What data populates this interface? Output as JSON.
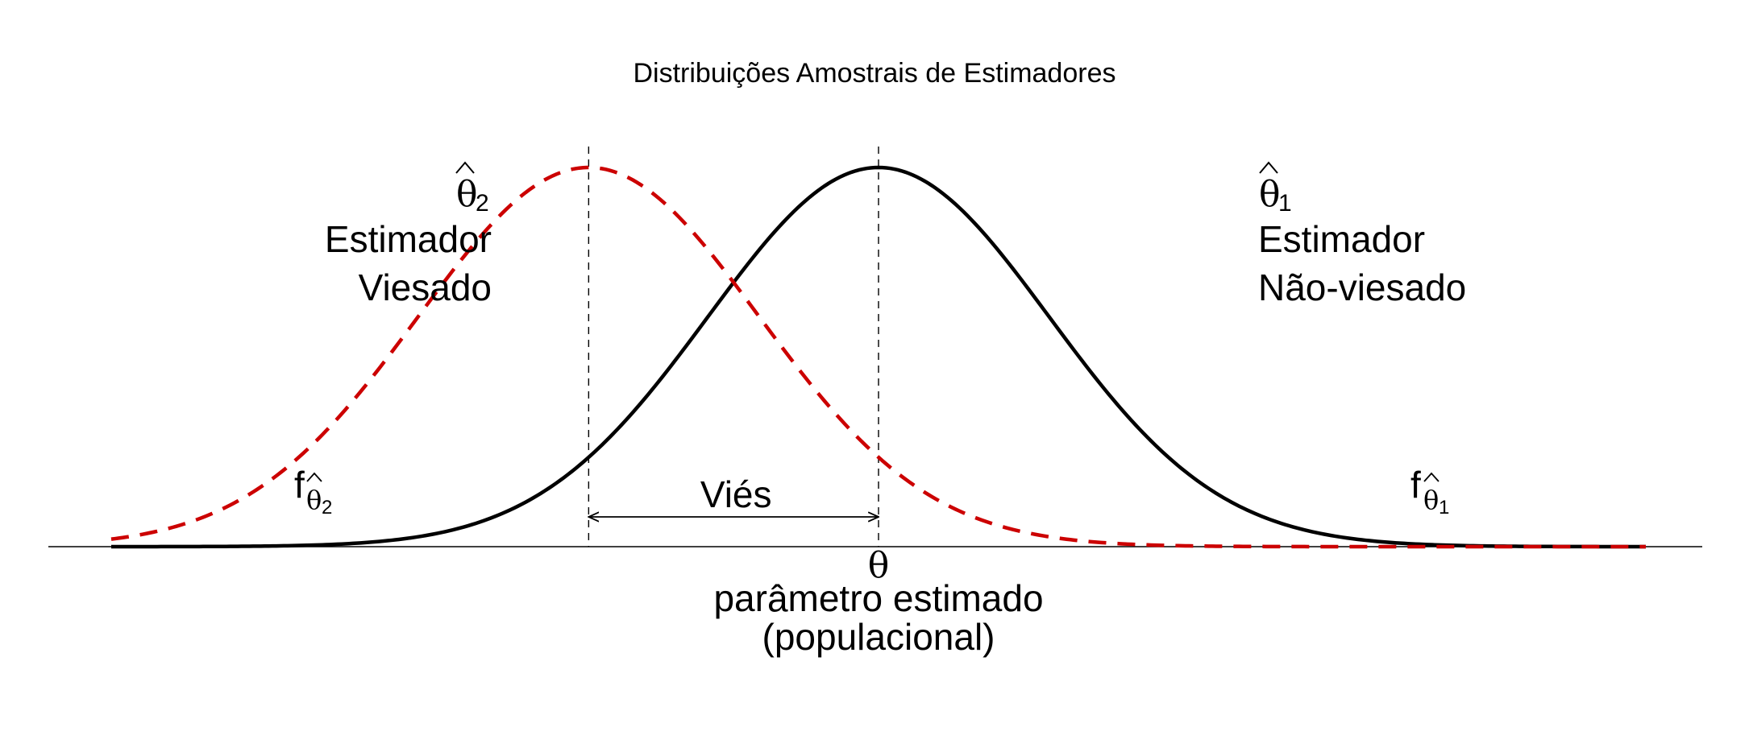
{
  "chart_data": {
    "type": "line",
    "title": "Distribuições Amostrais de Estimadores",
    "xlim": [
      -4.5,
      4.5
    ],
    "ylim": [
      0,
      1
    ],
    "theta": 0,
    "series": [
      {
        "role": "unbiased",
        "color": "#000000",
        "dash": "solid",
        "mean": 0,
        "sd": 1,
        "peak": 1,
        "estimator_symbol": "θ",
        "estimator_subscript": "1",
        "caption_lines": [
          "Estimador",
          "Não-viesado"
        ],
        "density_symbol": "f",
        "density_subscript": "θ",
        "density_sub_index": "1"
      },
      {
        "role": "biased",
        "color": "#cc0000",
        "dash": "dashed",
        "mean": -1.7,
        "sd": 1,
        "peak": 1,
        "estimator_symbol": "θ",
        "estimator_subscript": "2",
        "caption_lines": [
          "Estimador",
          "Viesado"
        ],
        "density_symbol": "f",
        "density_subscript": "θ",
        "density_sub_index": "2"
      }
    ],
    "annotations": {
      "bias_label": "Viés",
      "theta_symbol": "θ",
      "parameter_lines": [
        "parâmetro estimado",
        "(populacional)"
      ]
    }
  }
}
